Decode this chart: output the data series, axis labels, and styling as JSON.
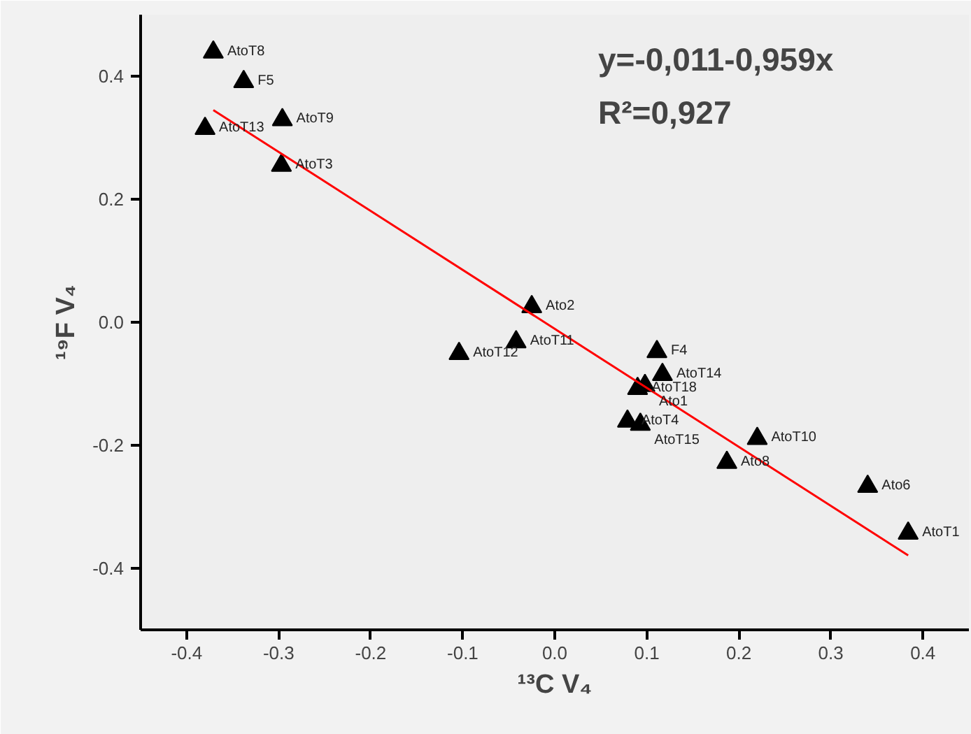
{
  "chart_data": {
    "type": "scatter",
    "xlabel": "¹³C V₄",
    "ylabel": "¹⁹F V₄",
    "xlim": [
      -0.45,
      0.45
    ],
    "ylim": [
      -0.5,
      0.5
    ],
    "xticks": [
      {
        "value": -0.4,
        "label": "-0.4"
      },
      {
        "value": -0.3,
        "label": "-0.3"
      },
      {
        "value": -0.2,
        "label": "-0.2"
      },
      {
        "value": -0.1,
        "label": "-0.1"
      },
      {
        "value": 0,
        "label": "0.0"
      },
      {
        "value": 0.1,
        "label": "0.1"
      },
      {
        "value": 0.2,
        "label": "0.2"
      },
      {
        "value": 0.3,
        "label": "0.3"
      },
      {
        "value": 0.4,
        "label": "0.4"
      }
    ],
    "yticks": [
      {
        "value": -0.4,
        "label": "-0.4"
      },
      {
        "value": -0.2,
        "label": "-0.2"
      },
      {
        "value": 0,
        "label": "0.0"
      },
      {
        "value": 0.2,
        "label": "0.2"
      },
      {
        "value": 0.4,
        "label": "0.4"
      }
    ],
    "grid": false,
    "series": [
      {
        "marker": "triangle",
        "color": "#000000",
        "x": [
          -0.371,
          -0.338,
          -0.38,
          -0.296,
          -0.297,
          -0.025,
          -0.042,
          -0.104,
          0.111,
          0.117,
          0.098,
          0.09,
          0.079,
          0.093,
          0.22,
          0.187,
          0.34,
          0.384
        ],
        "values": [
          0.439,
          0.391,
          0.315,
          0.329,
          0.255,
          0.025,
          -0.032,
          -0.051,
          -0.048,
          -0.085,
          -0.103,
          -0.108,
          -0.161,
          -0.166,
          -0.189,
          -0.228,
          -0.267,
          -0.343
        ]
      },
      {
        "type": "line",
        "marker": "none",
        "color": "#ff0000",
        "x": [
          -0.371,
          0.384
        ],
        "values": [
          0.345,
          -0.379
        ]
      }
    ],
    "annotations": [
      "y=-0,011-0,959x",
      "R²=0,927",
      {
        "text": "AtoT8",
        "x": -0.371,
        "y": 0.439
      },
      {
        "text": "F5",
        "x": -0.338,
        "y": 0.391
      },
      {
        "text": "AtoT13",
        "x": -0.38,
        "y": 0.315
      },
      {
        "text": "AtoT9",
        "x": -0.296,
        "y": 0.329
      },
      {
        "text": "AtoT3",
        "x": -0.297,
        "y": 0.255
      },
      {
        "text": "Ato2",
        "x": -0.025,
        "y": 0.025
      },
      {
        "text": "AtoT11",
        "x": -0.042,
        "y": -0.032
      },
      {
        "text": "AtoT12",
        "x": -0.104,
        "y": -0.051
      },
      {
        "text": "F4",
        "x": 0.111,
        "y": -0.048
      },
      {
        "text": "AtoT14",
        "x": 0.117,
        "y": -0.085
      },
      {
        "text": "Ato1",
        "x": 0.098,
        "y": -0.103
      },
      {
        "text": "AtoT18",
        "x": 0.09,
        "y": -0.108
      },
      {
        "text": "AtoT4",
        "x": 0.079,
        "y": -0.161
      },
      {
        "text": "AtoT15",
        "x": 0.093,
        "y": -0.166
      },
      {
        "text": "AtoT10",
        "x": 0.22,
        "y": -0.189
      },
      {
        "text": "Ato8",
        "x": 0.187,
        "y": -0.228
      },
      {
        "text": "Ato6",
        "x": 0.34,
        "y": -0.267
      },
      {
        "text": "AtoT1",
        "x": 0.384,
        "y": -0.343
      }
    ]
  }
}
